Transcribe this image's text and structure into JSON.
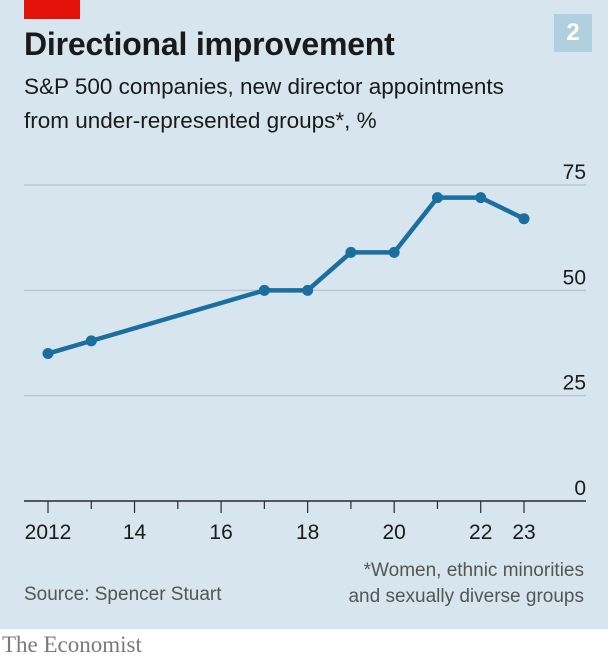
{
  "header": {
    "title": "Directional improvement",
    "badge": "2",
    "subtitle_lines": [
      "S&P 500 companies, new director appointments",
      "from under-represented groups*, %"
    ]
  },
  "footer": {
    "source": "Source: Spencer Stuart",
    "footnote_lines": [
      "*Women, ethnic minorities",
      "and sexually diverse groups"
    ],
    "brand": "The Economist"
  },
  "colors": {
    "background": "#d6e5ee",
    "line": "#1a6fa0",
    "accent_red": "#e3120b",
    "grid": "#b9c9d2",
    "axis": "#2a2a2a"
  },
  "chart_data": {
    "type": "line",
    "title": "Directional improvement",
    "subtitle": "S&P 500 companies, new director appointments from under-represented groups*, %",
    "x": [
      2012,
      2013,
      2017,
      2018,
      2019,
      2020,
      2021,
      2022,
      2023
    ],
    "series": [
      {
        "values": [
          35,
          38,
          50,
          50,
          59,
          59,
          72,
          72,
          67
        ]
      }
    ],
    "xlim": [
      2011.5,
      2026
    ],
    "ylim": [
      0,
      75
    ],
    "y_ticks": [
      0,
      25,
      50,
      75
    ],
    "y_tick_labels": [
      "0",
      "25",
      "50",
      "75"
    ],
    "x_ticks": [
      2012,
      2014,
      2016,
      2018,
      2020,
      2022,
      2023
    ],
    "x_tick_labels": [
      "2012",
      "14",
      "16",
      "18",
      "20",
      "22",
      "23"
    ],
    "x_minor_ticks": [
      2013,
      2015,
      2017,
      2019,
      2021
    ],
    "grid": true,
    "y_axis_position": "right"
  }
}
